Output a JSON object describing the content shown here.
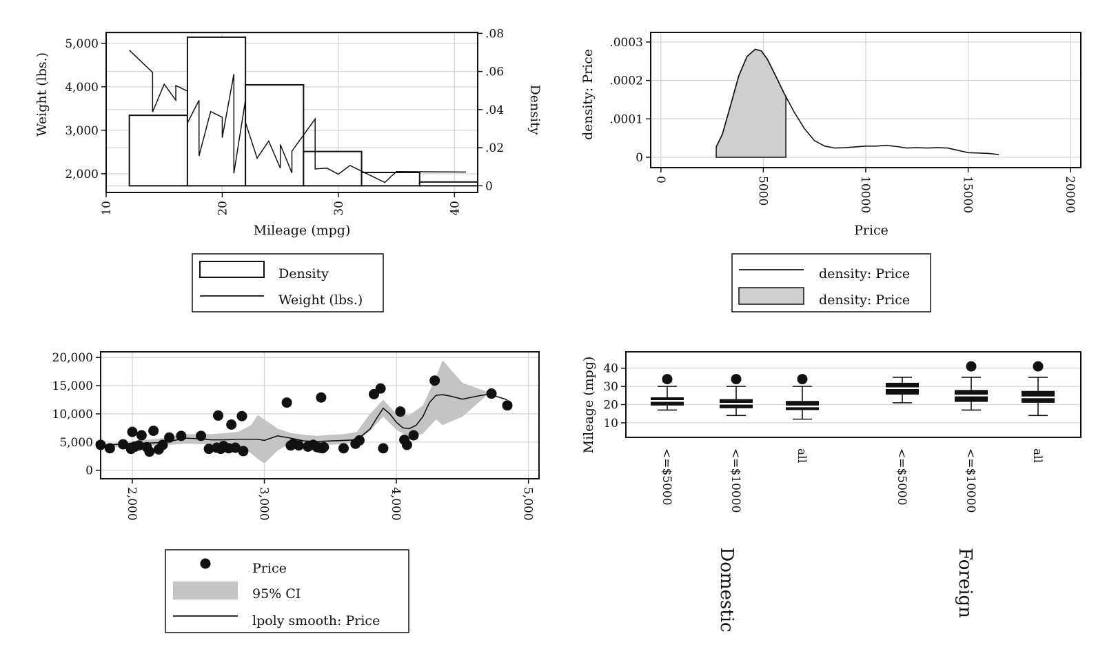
{
  "chart_data": [
    {
      "type": "bar",
      "subtype": "histogram-with-line",
      "xlabel": "Mileage (mpg)",
      "ylabel": "Weight (lbs.)",
      "y2label": "Density",
      "xlim": [
        10,
        42
      ],
      "ylim": [
        1570,
        5250
      ],
      "y2lim": [
        -0.0035,
        0.0805
      ],
      "xticks": [
        "10",
        "20",
        "30",
        "40"
      ],
      "yticks": [
        "5,000",
        "4,000",
        "3,000",
        "2,000"
      ],
      "y2ticks": [
        ".08",
        ".06",
        ".04",
        ".02",
        "0"
      ],
      "grid": true,
      "legend_position": "bottom",
      "histogram": {
        "name": "Density",
        "bins": [
          [
            12,
            17
          ],
          [
            17,
            22
          ],
          [
            22,
            27
          ],
          [
            27,
            32
          ],
          [
            32,
            37
          ],
          [
            37,
            42
          ]
        ],
        "density": [
          0.037,
          0.078,
          0.053,
          0.018,
          0.007,
          0.002
        ]
      },
      "series": [
        {
          "name": "Weight (lbs.)",
          "x": [
            12,
            14,
            14,
            15,
            16,
            16,
            17,
            17,
            18,
            18,
            19,
            20,
            20,
            21,
            21,
            22,
            22,
            23,
            24,
            25,
            25,
            26,
            26,
            28,
            28,
            29,
            30,
            31,
            34,
            35,
            41
          ],
          "y": [
            4840,
            4330,
            3420,
            4060,
            3690,
            4030,
            3900,
            3170,
            3690,
            2410,
            3430,
            3300,
            2830,
            4290,
            2010,
            3700,
            3180,
            2360,
            2750,
            2130,
            2670,
            2020,
            2520,
            3260,
            2110,
            2130,
            1990,
            2190,
            1800,
            2050,
            2040
          ]
        }
      ]
    },
    {
      "type": "area",
      "subtype": "kernel-density",
      "xlabel": "Price",
      "ylabel": "density: Price",
      "xlim": [
        -500,
        20500
      ],
      "ylim": [
        -2.7e-05,
        0.000325
      ],
      "xticks": [
        "0",
        "5000",
        "10000",
        "15000",
        "20000"
      ],
      "yticks": [
        ".0003",
        ".0002",
        ".0001",
        "0"
      ],
      "grid": true,
      "legend_position": "bottom",
      "series": [
        {
          "name": "density: Price",
          "style": "line",
          "x": [
            2700,
            3000,
            3400,
            3800,
            4200,
            4600,
            4900,
            5200,
            5600,
            6000,
            6500,
            7000,
            7500,
            8000,
            8500,
            9000,
            9500,
            10000,
            10500,
            11000,
            11500,
            12000,
            12500,
            13000,
            13500,
            14000,
            14500,
            15000,
            15500,
            16000,
            16500
          ],
          "y": [
            2.7e-05,
            6e-05,
            0.000135,
            0.000212,
            0.000262,
            0.000281,
            0.000277,
            0.000255,
            0.000212,
            0.000168,
            0.000118,
            7.5e-05,
            4.3e-05,
            2.9e-05,
            2.4e-05,
            2.5e-05,
            2.7e-05,
            2.9e-05,
            2.9e-05,
            3.1e-05,
            2.8e-05,
            2.4e-05,
            2.5e-05,
            2.4e-05,
            2.5e-05,
            2.4e-05,
            1.8e-05,
            1.2e-05,
            1.1e-05,
            1e-05,
            7e-06
          ]
        },
        {
          "name": "density: Price",
          "style": "area",
          "x_range": [
            2700,
            6100
          ]
        }
      ]
    },
    {
      "type": "scatter",
      "subtype": "scatter-with-lpoly-ci",
      "xlim": [
        1760,
        5080
      ],
      "ylim": [
        -1500,
        21000
      ],
      "xticks": [
        "2,000",
        "3,000",
        "4,000",
        "5,000"
      ],
      "yticks": [
        "20,000",
        "15,000",
        "10,000",
        "5,000",
        "0"
      ],
      "grid": true,
      "legend_position": "bottom",
      "series": [
        {
          "name": "Price",
          "style": "points",
          "x": [
            1760,
            1830,
            1930,
            1990,
            2000,
            2020,
            2050,
            2070,
            2110,
            2130,
            2160,
            2200,
            2230,
            2280,
            2370,
            2520,
            2580,
            2640,
            2650,
            2670,
            2690,
            2730,
            2750,
            2780,
            2830,
            2840,
            3170,
            3200,
            3220,
            3260,
            3330,
            3370,
            3400,
            3420,
            3430,
            3440,
            3450,
            3600,
            3690,
            3720,
            3830,
            3880,
            3900,
            4030,
            4060,
            4080,
            4130,
            4290,
            4720,
            4840
          ],
          "y": [
            4500,
            3900,
            4600,
            3800,
            6800,
            4200,
            4400,
            6200,
            4100,
            3300,
            7000,
            3700,
            4500,
            5800,
            6100,
            6100,
            3800,
            4000,
            9700,
            3800,
            4300,
            3900,
            8100,
            4000,
            9600,
            3400,
            12000,
            4400,
            4700,
            4400,
            4200,
            4500,
            4100,
            4000,
            12900,
            3900,
            4100,
            3900,
            4700,
            5300,
            13500,
            14500,
            3900,
            10400,
            5400,
            4500,
            6200,
            15900,
            13600,
            11500
          ]
        },
        {
          "name": "95% CI",
          "style": "band",
          "x": [
            1760,
            2000,
            2200,
            2400,
            2600,
            2800,
            2900,
            2950,
            3000,
            3100,
            3200,
            3300,
            3400,
            3500,
            3600,
            3700,
            3800,
            3900,
            4000,
            4100,
            4200,
            4300,
            4350,
            4500,
            4700
          ],
          "lower": [
            4000,
            4200,
            4400,
            4700,
            4600,
            4400,
            3000,
            2000,
            1200,
            3500,
            4800,
            4600,
            4500,
            4500,
            4700,
            5000,
            7000,
            9500,
            7200,
            5800,
            6500,
            9000,
            8000,
            9500,
            13600
          ],
          "upper": [
            4600,
            5200,
            5600,
            6400,
            6400,
            6800,
            8000,
            9800,
            9000,
            7400,
            6600,
            6300,
            6100,
            6300,
            6400,
            6800,
            10000,
            12500,
            10000,
            9800,
            11500,
            16500,
            19500,
            15500,
            13800
          ]
        },
        {
          "name": "lpoly smooth: Price",
          "style": "line",
          "x": [
            1760,
            1900,
            2000,
            2100,
            2200,
            2300,
            2400,
            2500,
            2600,
            2700,
            2800,
            2900,
            2950,
            3000,
            3100,
            3200,
            3300,
            3400,
            3500,
            3600,
            3700,
            3800,
            3850,
            3900,
            3950,
            4000,
            4050,
            4100,
            4150,
            4200,
            4250,
            4300,
            4350,
            4400,
            4500,
            4600,
            4700,
            4840
          ],
          "y": [
            4400,
            4600,
            4800,
            4800,
            4900,
            5200,
            5700,
            5600,
            5400,
            5400,
            5500,
            5500,
            5500,
            5300,
            6100,
            5700,
            5200,
            5100,
            5200,
            5300,
            5400,
            7300,
            9200,
            11000,
            10000,
            8500,
            7500,
            7400,
            8000,
            9500,
            12000,
            13300,
            13400,
            13200,
            12600,
            13100,
            13500,
            12500
          ]
        }
      ]
    },
    {
      "type": "box",
      "ylabel": "Mileage (mpg)",
      "ylim": [
        2,
        49
      ],
      "yticks": [
        "40",
        "30",
        "20",
        "10"
      ],
      "grid": true,
      "groups": [
        "Domestic",
        "Foreign"
      ],
      "categories": [
        "<=$5000",
        "<=$10000",
        "all",
        "<=$5000",
        "<=$10000",
        "all"
      ],
      "boxes": [
        {
          "group": "Domestic",
          "label": "<=$5000",
          "min": 17,
          "q1": 19.5,
          "median": 22,
          "q3": 24,
          "max": 30,
          "outliers": [
            34
          ]
        },
        {
          "group": "Domestic",
          "label": "<=$10000",
          "min": 14,
          "q1": 18,
          "median": 20.5,
          "q3": 23,
          "max": 30,
          "outliers": [
            34
          ]
        },
        {
          "group": "Domestic",
          "label": "all",
          "min": 12,
          "q1": 17,
          "median": 19,
          "q3": 22,
          "max": 30,
          "outliers": [
            34
          ]
        },
        {
          "group": "Foreign",
          "label": "<=$5000",
          "min": 21,
          "q1": 25.5,
          "median": 29,
          "q3": 32,
          "max": 35,
          "outliers": []
        },
        {
          "group": "Foreign",
          "label": "<=$10000",
          "min": 17,
          "q1": 21.5,
          "median": 25,
          "q3": 28,
          "max": 35,
          "outliers": [
            41
          ]
        },
        {
          "group": "Foreign",
          "label": "all",
          "min": 14,
          "q1": 21,
          "median": 24,
          "q3": 27.5,
          "max": 35,
          "outliers": [
            41
          ]
        }
      ]
    }
  ]
}
